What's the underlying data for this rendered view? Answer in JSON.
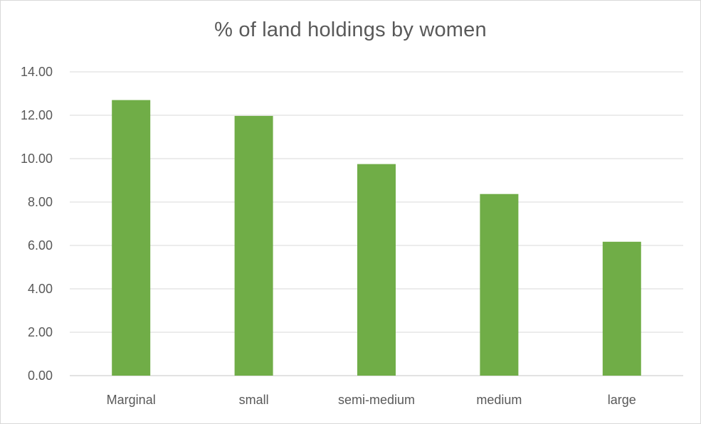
{
  "chart_data": {
    "type": "bar",
    "title": "% of land holdings by women",
    "categories": [
      "Marginal",
      "small",
      "semi-medium",
      "medium",
      "large"
    ],
    "values": [
      12.7,
      11.97,
      9.75,
      8.37,
      6.17
    ],
    "ylim": [
      0,
      14
    ],
    "yticks": [
      0,
      2,
      4,
      6,
      8,
      10,
      12,
      14
    ],
    "ytick_labels": [
      "0.00",
      "2.00",
      "4.00",
      "6.00",
      "8.00",
      "10.00",
      "12.00",
      "14.00"
    ],
    "xlabel": "",
    "ylabel": "",
    "grid": true,
    "legend": "none",
    "colors": {
      "bar": "#70ad47",
      "grid": "#d9d9d9",
      "text": "#595959"
    }
  }
}
